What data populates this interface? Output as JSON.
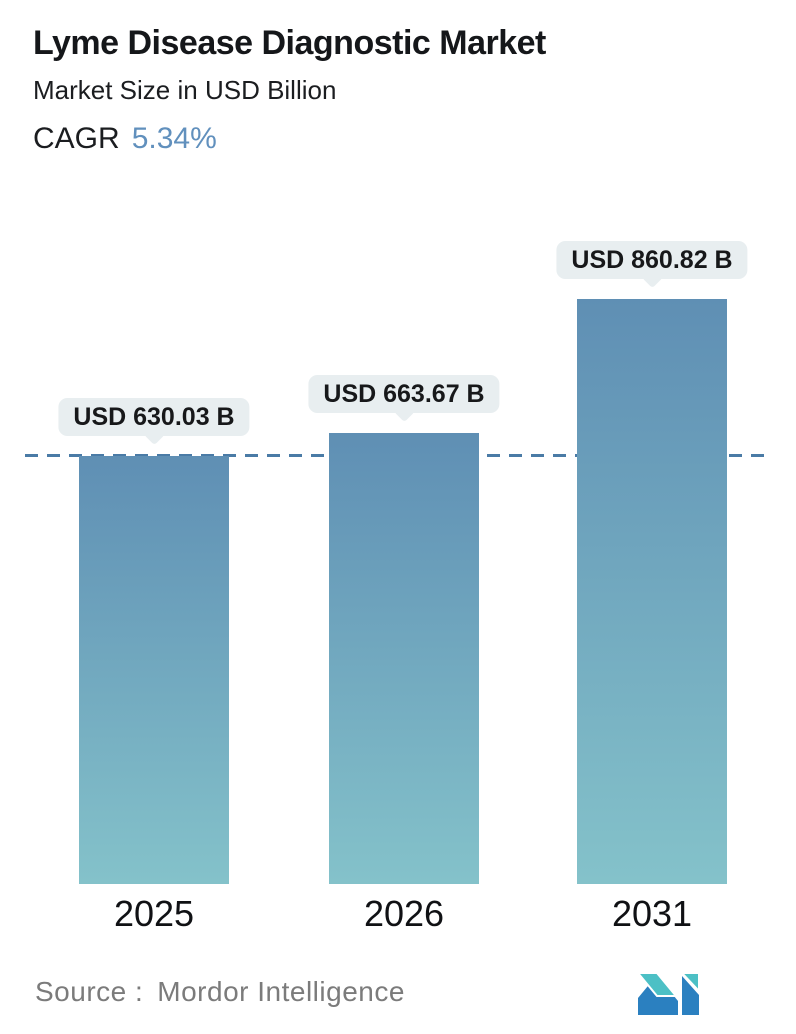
{
  "header": {
    "title": "Lyme Disease Diagnostic Market",
    "subtitle": "Market Size in USD Billion",
    "cagr_label": "CAGR",
    "cagr_value": "5.34%"
  },
  "chart_data": {
    "type": "bar",
    "categories": [
      "2025",
      "2026",
      "2031"
    ],
    "values": [
      630.03,
      663.67,
      860.82
    ],
    "value_labels": [
      "USD 630.03 B",
      "USD 663.67 B",
      "USD 860.82 B"
    ],
    "title": "Lyme Disease Diagnostic Market",
    "ylabel": "Market Size in USD Billion",
    "unit": "USD Billion",
    "cagr": "5.34%",
    "baseline_value": 0,
    "reference_line_value": 630.03,
    "grid": false,
    "legend": false,
    "bar_color_top": "#5f8fb4",
    "bar_color_bottom": "#84c2ca"
  },
  "footer": {
    "source_label": "Source :",
    "source_value": "Mordor Intelligence",
    "logo_name": "mordor-intelligence-logo"
  },
  "colors": {
    "accent": "#6190bd",
    "dash_line": "#4a7ba6",
    "callout_bg": "#e8eef0",
    "bar_top": "#5f8fb4",
    "bar_bottom": "#84c2ca",
    "logo_blue": "#2b80c0",
    "logo_teal": "#4cc0c5"
  }
}
